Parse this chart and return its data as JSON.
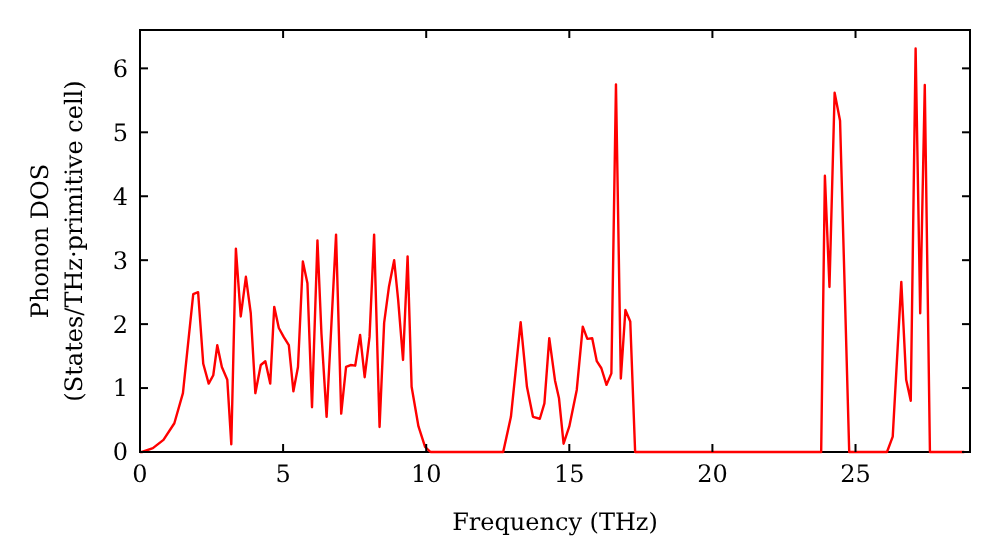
{
  "chart_data": {
    "type": "line",
    "xlabel": "Frequency (THz)",
    "ylabel": "Phonon DOS\n(States/THz·primitive cell)",
    "xlim": [
      0,
      29
    ],
    "ylim": [
      0,
      6.6
    ],
    "xticks": [
      0,
      5,
      10,
      15,
      20,
      25
    ],
    "yticks": [
      0,
      1,
      2,
      3,
      4,
      5,
      6
    ],
    "grid": false,
    "marker": "none",
    "line_style": "solid",
    "series": [
      {
        "color": "#ff0000",
        "x": [
          0,
          0.07,
          0.45,
          0.82,
          1.2,
          1.5,
          1.86,
          2.03,
          2.21,
          2.4,
          2.56,
          2.7,
          2.86,
          3.05,
          3.19,
          3.35,
          3.52,
          3.7,
          3.87,
          4.03,
          4.22,
          4.38,
          4.55,
          4.69,
          4.85,
          5.02,
          5.2,
          5.36,
          5.52,
          5.69,
          5.85,
          6.01,
          6.2,
          6.34,
          6.52,
          6.85,
          7.03,
          7.2,
          7.36,
          7.52,
          7.69,
          7.85,
          8.02,
          8.18,
          8.37,
          8.53,
          8.7,
          8.88,
          9.02,
          9.19,
          9.35,
          9.49,
          9.73,
          9.96,
          10.15,
          12.69,
          12.96,
          13.3,
          13.52,
          13.73,
          13.97,
          14.13,
          14.3,
          14.5,
          14.64,
          14.8,
          15.0,
          15.26,
          15.47,
          15.63,
          15.8,
          15.96,
          16.12,
          16.3,
          16.47,
          16.63,
          16.8,
          16.96,
          17.13,
          17.3,
          23.8,
          23.93,
          24.09,
          24.27,
          24.46,
          24.78,
          26.1,
          26.3,
          26.6,
          26.77,
          26.93,
          27.1,
          27.26,
          27.42,
          27.6,
          28.8
        ],
        "values": [
          0,
          0,
          0.06,
          0.19,
          0.45,
          0.92,
          2.47,
          2.5,
          1.38,
          1.07,
          1.2,
          1.67,
          1.33,
          1.13,
          0.12,
          3.18,
          2.12,
          2.74,
          2.17,
          0.92,
          1.36,
          1.42,
          1.07,
          2.27,
          1.94,
          1.8,
          1.67,
          0.95,
          1.33,
          2.98,
          2.64,
          0.7,
          3.31,
          1.85,
          0.55,
          3.4,
          0.6,
          1.33,
          1.36,
          1.35,
          1.83,
          1.17,
          1.8,
          3.4,
          0.39,
          2.02,
          2.59,
          3.0,
          2.38,
          1.44,
          3.06,
          1.02,
          0.4,
          0.08,
          0,
          0,
          0.55,
          2.03,
          1.02,
          0.55,
          0.52,
          0.76,
          1.78,
          1.12,
          0.84,
          0.13,
          0.4,
          0.97,
          1.96,
          1.77,
          1.78,
          1.42,
          1.31,
          1.05,
          1.23,
          5.75,
          1.15,
          2.22,
          2.04,
          0,
          0,
          4.32,
          2.58,
          5.62,
          5.18,
          0,
          0,
          0.24,
          2.66,
          1.13,
          0.8,
          6.31,
          2.17,
          5.74,
          0,
          0
        ]
      }
    ]
  }
}
